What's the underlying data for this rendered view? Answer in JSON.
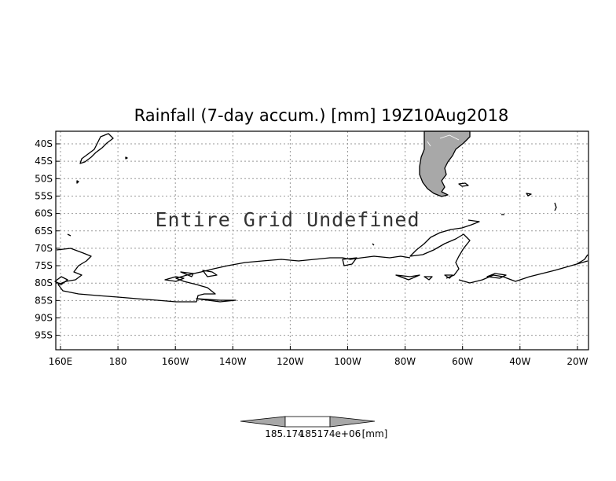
{
  "title": "Rainfall (7-day accum.) [mm] 19Z10Aug2018",
  "overlay_message": "Entire Grid Undefined",
  "axes": {
    "lat_ticks": [
      "40S",
      "45S",
      "50S",
      "55S",
      "60S",
      "65S",
      "70S",
      "75S",
      "80S",
      "85S",
      "90S",
      "95S"
    ],
    "lon_ticks": [
      "160E",
      "180",
      "160W",
      "140W",
      "120W",
      "100W",
      "80W",
      "60W",
      "40W",
      "20W"
    ],
    "grid": true
  },
  "colorbar": {
    "label_left": "185.174",
    "label_mid": "185174e+06",
    "units": "[mm]"
  },
  "colors": {
    "land_fill": "#a8a8a8",
    "coastline": "#000000",
    "grid": "#999999",
    "colorbar_fill": "#a8a8a8"
  }
}
